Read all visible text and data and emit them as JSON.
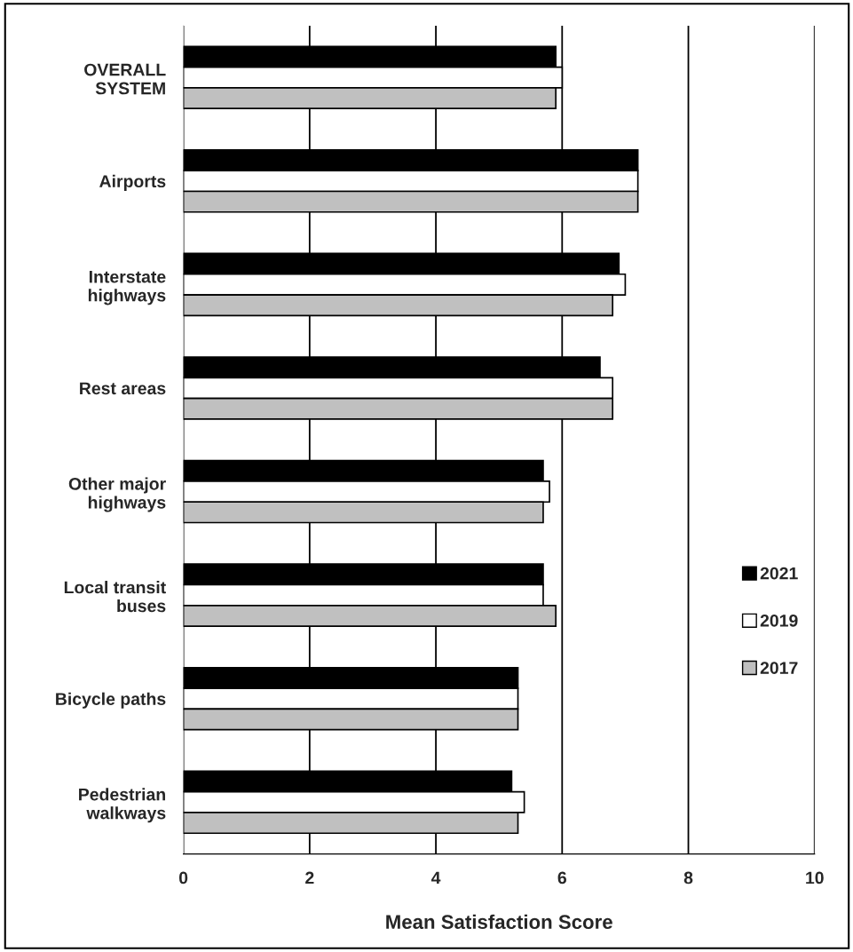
{
  "chart_data": {
    "type": "bar",
    "orientation": "horizontal",
    "xlabel": "Mean Satisfaction Score",
    "categories": [
      "OVERALL\nSYSTEM",
      "Airports",
      "Interstate\nhighways",
      "Rest areas",
      "Other major\nhighways",
      "Local transit\nbuses",
      "Bicycle paths",
      "Pedestrian\nwalkways"
    ],
    "series": [
      {
        "name": "2021",
        "color": "#000000",
        "values": [
          5.9,
          7.2,
          6.9,
          6.6,
          5.7,
          5.7,
          5.3,
          5.2
        ]
      },
      {
        "name": "2019",
        "color": "#ffffff",
        "values": [
          6.0,
          7.2,
          7.0,
          6.8,
          5.8,
          5.7,
          5.3,
          5.4
        ]
      },
      {
        "name": "2017",
        "color": "#c0c0c0",
        "values": [
          5.9,
          7.2,
          6.8,
          6.8,
          5.7,
          5.9,
          5.3,
          5.3
        ]
      }
    ],
    "xlim": [
      0,
      10
    ],
    "xticks": [
      0,
      2,
      4,
      6,
      8,
      10
    ],
    "grid": "x",
    "legend": "right"
  }
}
